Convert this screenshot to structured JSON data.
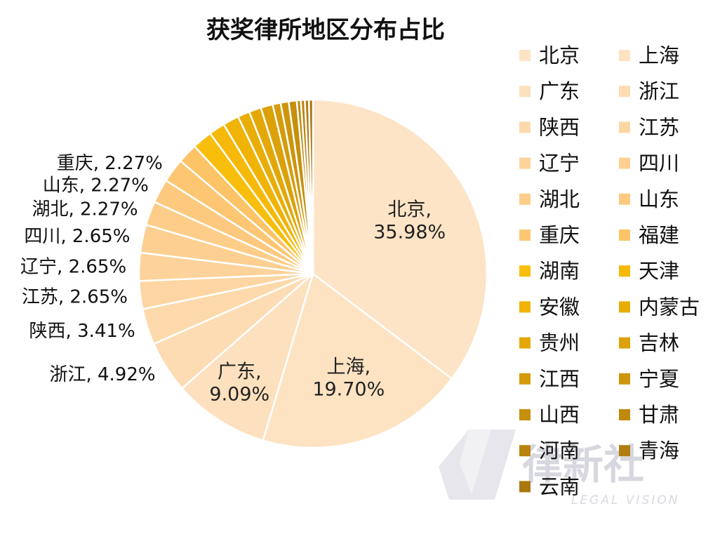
{
  "chart_data": {
    "type": "pie",
    "title": "获奖律所地区分布占比",
    "slices": [
      {
        "name": "北京",
        "value": 35.98,
        "color": "#fde4c6"
      },
      {
        "name": "上海",
        "value": 19.7,
        "color": "#fde3c2"
      },
      {
        "name": "广东",
        "value": 9.09,
        "color": "#fde0bd"
      },
      {
        "name": "浙江",
        "value": 4.92,
        "color": "#fddcb4"
      },
      {
        "name": "陕西",
        "value": 3.41,
        "color": "#fdd9ab"
      },
      {
        "name": "江苏",
        "value": 2.65,
        "color": "#fdd6a3"
      },
      {
        "name": "辽宁",
        "value": 2.65,
        "color": "#fdd39b"
      },
      {
        "name": "四川",
        "value": 2.65,
        "color": "#fdd092"
      },
      {
        "name": "湖北",
        "value": 2.27,
        "color": "#fdcd89"
      },
      {
        "name": "山东",
        "value": 2.27,
        "color": "#fdc97f"
      },
      {
        "name": "重庆",
        "value": 2.27,
        "color": "#fdc673"
      },
      {
        "name": "福建",
        "value": 1.89,
        "color": "#fdc367"
      },
      {
        "name": "湖南",
        "value": 1.89,
        "color": "#f9be0c"
      },
      {
        "name": "天津",
        "value": 1.52,
        "color": "#f6b90a"
      },
      {
        "name": "安徽",
        "value": 1.52,
        "color": "#f0b306"
      },
      {
        "name": "内蒙古",
        "value": 1.14,
        "color": "#e9ad07"
      },
      {
        "name": "贵州",
        "value": 1.14,
        "color": "#e3a708"
      },
      {
        "name": "吉林",
        "value": 1.14,
        "color": "#dca109"
      },
      {
        "name": "江西",
        "value": 0.76,
        "color": "#d59b0a"
      },
      {
        "name": "宁夏",
        "value": 0.76,
        "color": "#cd950b"
      },
      {
        "name": "山西",
        "value": 0.76,
        "color": "#c68f0c"
      },
      {
        "name": "甘肃",
        "value": 0.38,
        "color": "#bf890d"
      },
      {
        "name": "河南",
        "value": 0.38,
        "color": "#b8830e"
      },
      {
        "name": "青海",
        "value": 0.38,
        "color": "#b17d0f"
      },
      {
        "name": "云南",
        "value": 0.38,
        "color": "#aa7710"
      }
    ],
    "data_labels": [
      {
        "name": "北京",
        "text": "35.98%"
      },
      {
        "name": "上海",
        "text": "19.70%"
      },
      {
        "name": "广东",
        "text": "9.09%"
      },
      {
        "name": "浙江",
        "text": "4.92%"
      },
      {
        "name": "陕西",
        "text": "3.41%"
      },
      {
        "name": "江苏",
        "text": "2.65%"
      },
      {
        "name": "辽宁",
        "text": "2.65%"
      },
      {
        "name": "四川",
        "text": "2.65%"
      },
      {
        "name": "湖北",
        "text": "2.27%"
      },
      {
        "name": "山东",
        "text": "2.27%"
      },
      {
        "name": "重庆",
        "text": "2.27%"
      }
    ],
    "legend_position": "right"
  },
  "watermark": {
    "logo_text": "律新社",
    "subtext": "LEGAL VISION"
  }
}
